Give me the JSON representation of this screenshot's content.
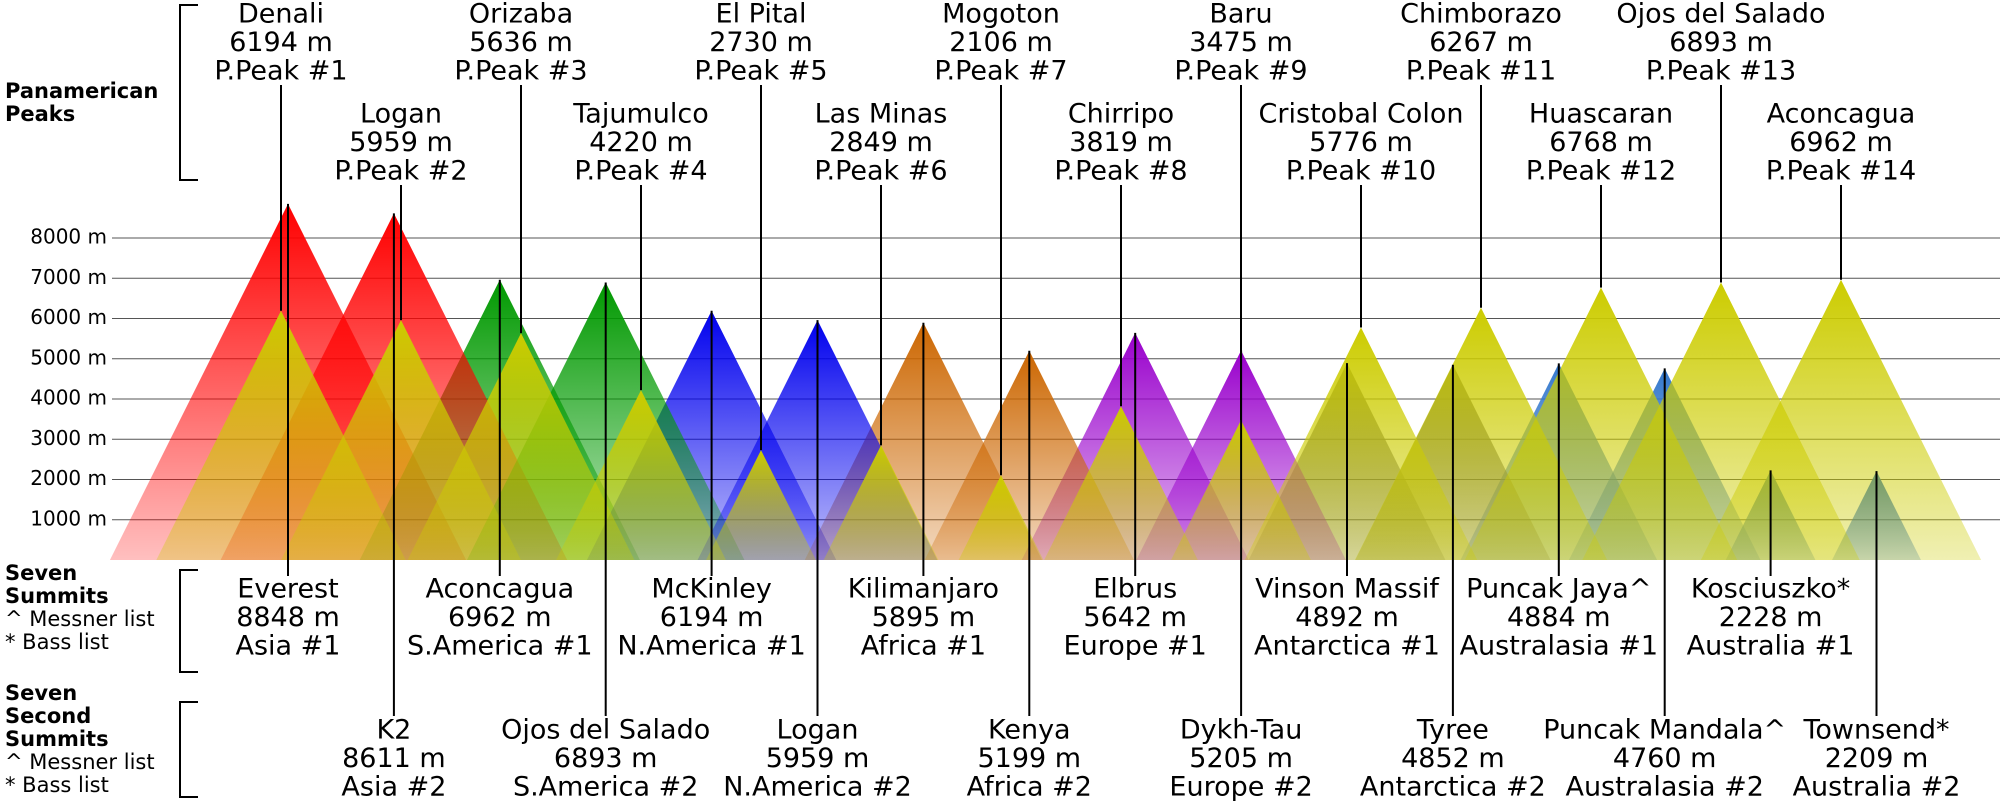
{
  "chart_data": {
    "type": "mountain",
    "ylim": [
      0,
      8000
    ],
    "yticks": [
      {
        "value": 1000,
        "label": "1000 m"
      },
      {
        "value": 2000,
        "label": "2000 m"
      },
      {
        "value": 3000,
        "label": "3000 m"
      },
      {
        "value": 4000,
        "label": "4000 m"
      },
      {
        "value": 5000,
        "label": "5000 m"
      },
      {
        "value": 6000,
        "label": "6000 m"
      },
      {
        "value": 7000,
        "label": "7000 m"
      },
      {
        "value": 8000,
        "label": "8000 m"
      }
    ],
    "grid": true,
    "series": [
      {
        "name": "Panamerican Peaks",
        "notes": [],
        "color": "#cccc00",
        "names": [
          "Denali",
          "Logan",
          "Orizaba",
          "Tajumulco",
          "El Pital",
          "Las Minas",
          "Mogoton",
          "Chirripo",
          "Baru",
          "Cristobal Colon",
          "Chimborazo",
          "Huascaran",
          "Ojos del Salado",
          "Aconcagua"
        ],
        "values": [
          6194,
          5959,
          5636,
          4220,
          2730,
          2849,
          2106,
          3819,
          3475,
          5776,
          6267,
          6768,
          6893,
          6962
        ],
        "value_labels": [
          "6194 m",
          "5959 m",
          "5636 m",
          "4220 m",
          "2730 m",
          "2849 m",
          "2106 m",
          "3819 m",
          "3475 m",
          "5776 m",
          "6267 m",
          "6768 m",
          "6893 m",
          "6962 m"
        ],
        "ranks": [
          "P.Peak #1",
          "P.Peak #2",
          "P.Peak #3",
          "P.Peak #4",
          "P.Peak #5",
          "P.Peak #6",
          "P.Peak #7",
          "P.Peak #8",
          "P.Peak #9",
          "P.Peak #10",
          "P.Peak #11",
          "P.Peak #12",
          "P.Peak #13",
          "P.Peak #14"
        ]
      },
      {
        "name": "Seven Summits",
        "notes": [
          "^ Messner list",
          "* Bass list"
        ],
        "names": [
          "Everest",
          "Aconcagua",
          "McKinley",
          "Kilimanjaro",
          "Elbrus",
          "Vinson Massif",
          "Puncak Jaya^",
          "Kosciuszko*"
        ],
        "values": [
          8848,
          6962,
          6194,
          5895,
          5642,
          4892,
          4884,
          2228
        ],
        "value_labels": [
          "8848 m",
          "6962 m",
          "6194 m",
          "5895 m",
          "5642 m",
          "4892 m",
          "4884 m",
          "2228 m"
        ],
        "ranks": [
          "Asia #1",
          "S.America #1",
          "N.America #1",
          "Africa #1",
          "Europe #1",
          "Antarctica #1",
          "Australasia #1",
          "Australia #1"
        ],
        "colors": [
          "#ff0000",
          "#009900",
          "#0000ee",
          "#cc6600",
          "#9900cc",
          "#666666",
          "#3377cc",
          "#1a66cc"
        ]
      },
      {
        "name": "Seven Second Summits",
        "notes": [
          "^ Messner list",
          "* Bass list"
        ],
        "names": [
          "K2",
          "Ojos del Salado",
          "Logan",
          "Kenya",
          "Dykh-Tau",
          "Tyree",
          "Puncak Mandala^",
          "Townsend*"
        ],
        "values": [
          8611,
          6893,
          5959,
          5199,
          5205,
          4852,
          4760,
          2209
        ],
        "value_labels": [
          "8611 m",
          "6893 m",
          "5959 m",
          "5199 m",
          "5205 m",
          "4852 m",
          "4760 m",
          "2209 m"
        ],
        "ranks": [
          "Asia #2",
          "S.America #2",
          "N.America #2",
          "Africa #2",
          "Europe #2",
          "Antarctica #2",
          "Australasia #2",
          "Australia #2"
        ],
        "colors": [
          "#ff0000",
          "#009900",
          "#0000ee",
          "#cc6600",
          "#9900cc",
          "#666666",
          "#3377cc",
          "#1a66cc"
        ]
      }
    ]
  }
}
